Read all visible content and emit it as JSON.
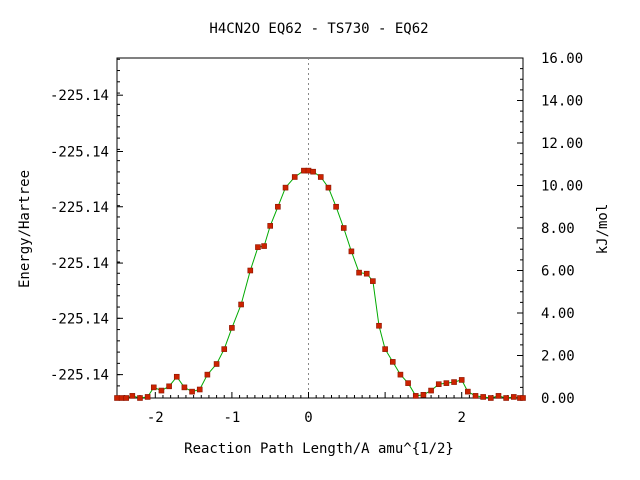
{
  "chart_data": {
    "type": "line",
    "title": "H4CN2O    EQ62 - TS730 - EQ62",
    "xlabel": "Reaction Path Length/A amu^{1/2}",
    "ylabel_left": "Energy/Hartree",
    "ylabel_right": "kJ/mol",
    "xlim": [
      -2.5,
      2.8
    ],
    "ylim_kjmol": [
      0,
      16
    ],
    "x_ticks": [
      -2,
      -1,
      0,
      2
    ],
    "x_tick_labels": [
      "-2",
      "-1",
      "0",
      "2"
    ],
    "right_ticks": [
      0,
      2,
      4,
      6,
      8,
      10,
      12,
      14,
      16
    ],
    "right_tick_labels": [
      "0.00",
      "2.00",
      "4.00",
      "6.00",
      "8.00",
      "10.00",
      "12.00",
      "14.00",
      "16.00"
    ],
    "left_ticks_kjmol": [
      1.1,
      3.75,
      6.35,
      9.0,
      11.6,
      14.25
    ],
    "left_tick_labels": [
      "-225.14",
      "-225.14",
      "-225.14",
      "-225.14",
      "-225.14",
      "-225.14"
    ],
    "ts_marker_x": 0,
    "line_color": "#00aa00",
    "marker_color": "#cc2200",
    "series": [
      {
        "points": [
          [
            -2.5,
            0.0
          ],
          [
            -2.44,
            0.0
          ],
          [
            -2.38,
            0.0
          ],
          [
            -2.3,
            0.1
          ],
          [
            -2.2,
            0.0
          ],
          [
            -2.1,
            0.05
          ],
          [
            -2.02,
            0.5
          ],
          [
            -1.92,
            0.35
          ],
          [
            -1.82,
            0.55
          ],
          [
            -1.72,
            1.0
          ],
          [
            -1.62,
            0.5
          ],
          [
            -1.52,
            0.3
          ],
          [
            -1.42,
            0.4
          ],
          [
            -1.32,
            1.1
          ],
          [
            -1.2,
            1.6
          ],
          [
            -1.1,
            2.3
          ],
          [
            -1.0,
            3.3
          ],
          [
            -0.88,
            4.4
          ],
          [
            -0.76,
            6.0
          ],
          [
            -0.66,
            7.1
          ],
          [
            -0.58,
            7.15
          ],
          [
            -0.5,
            8.1
          ],
          [
            -0.4,
            9.0
          ],
          [
            -0.3,
            9.9
          ],
          [
            -0.18,
            10.4
          ],
          [
            -0.06,
            10.7
          ],
          [
            0.0,
            10.7
          ],
          [
            0.06,
            10.65
          ],
          [
            0.16,
            10.4
          ],
          [
            0.26,
            9.9
          ],
          [
            0.36,
            9.0
          ],
          [
            0.46,
            8.0
          ],
          [
            0.56,
            6.9
          ],
          [
            0.66,
            5.9
          ],
          [
            0.76,
            5.85
          ],
          [
            0.84,
            5.5
          ],
          [
            0.92,
            3.4
          ],
          [
            1.0,
            2.3
          ],
          [
            1.1,
            1.7
          ],
          [
            1.2,
            1.1
          ],
          [
            1.3,
            0.7
          ],
          [
            1.4,
            0.1
          ],
          [
            1.5,
            0.15
          ],
          [
            1.6,
            0.35
          ],
          [
            1.7,
            0.65
          ],
          [
            1.8,
            0.7
          ],
          [
            1.9,
            0.75
          ],
          [
            2.0,
            0.85
          ],
          [
            2.08,
            0.3
          ],
          [
            2.18,
            0.1
          ],
          [
            2.28,
            0.05
          ],
          [
            2.38,
            0.0
          ],
          [
            2.48,
            0.1
          ],
          [
            2.58,
            0.0
          ],
          [
            2.68,
            0.05
          ],
          [
            2.76,
            0.0
          ],
          [
            2.8,
            0.0
          ]
        ]
      }
    ]
  }
}
